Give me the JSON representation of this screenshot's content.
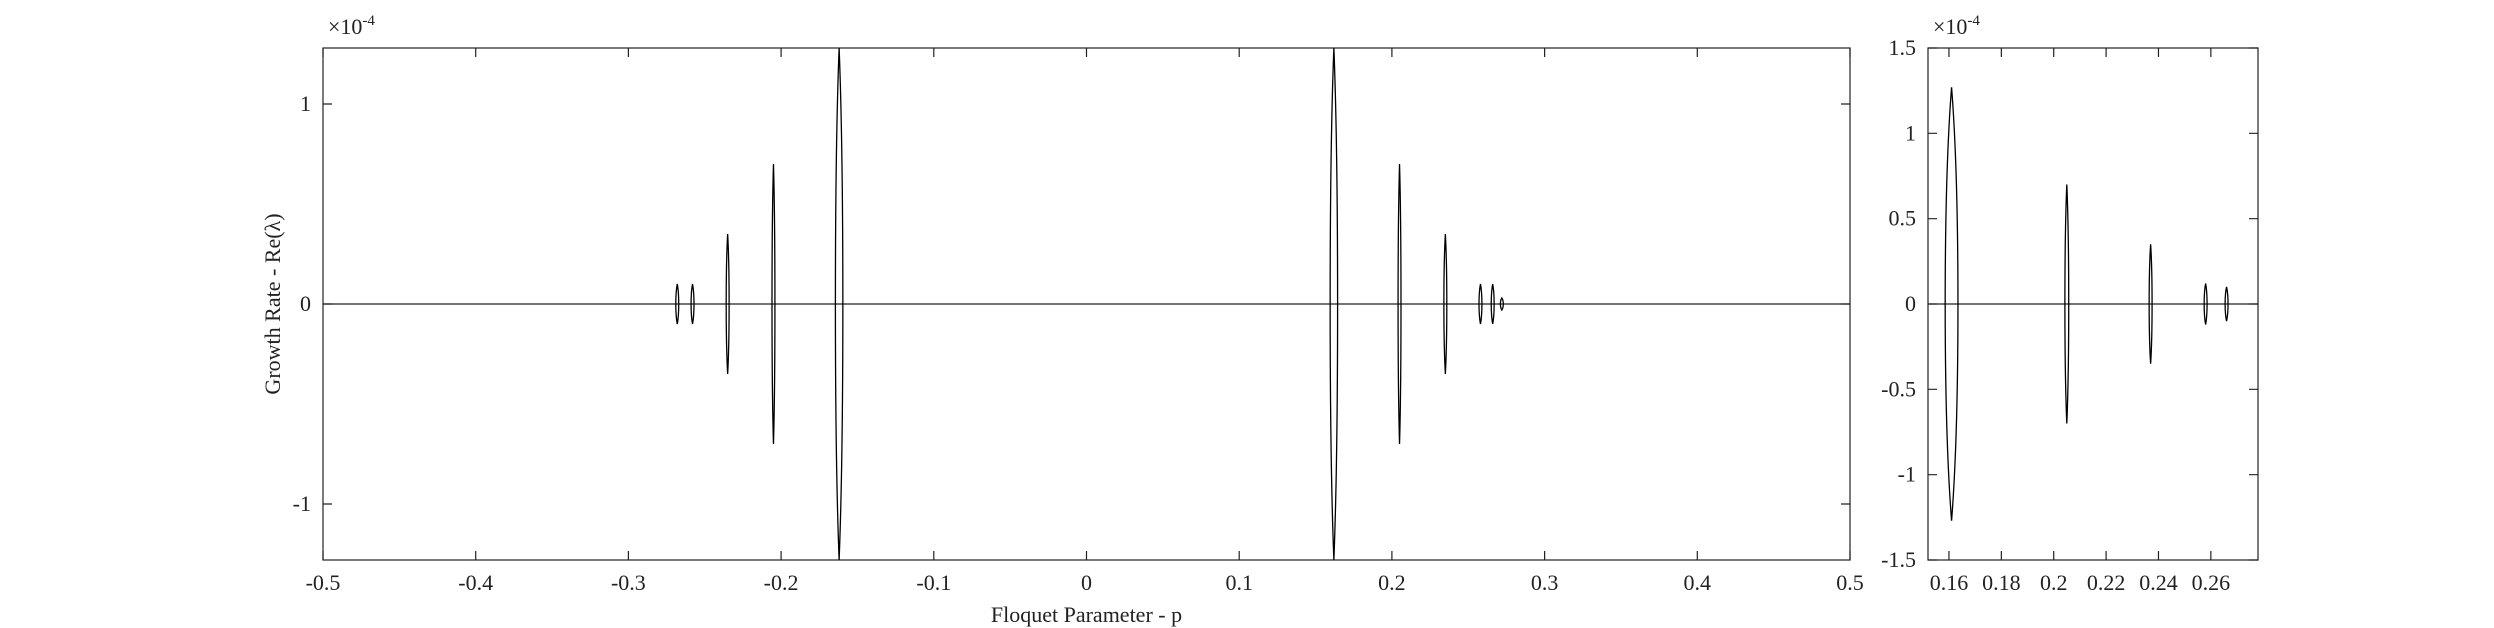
{
  "chart_data": [
    {
      "type": "spikes",
      "xlabel": "Floquet Parameter - p",
      "ylabel": "Growth Rate - Re(λ)",
      "exponent_base": "×10",
      "exponent": "-4",
      "xlim": [
        -0.5,
        0.5
      ],
      "xticks": [
        -0.5,
        -0.4,
        -0.3,
        -0.2,
        -0.1,
        0,
        0.1,
        0.2,
        0.3,
        0.4,
        0.5
      ],
      "ylim": [
        -1.28,
        1.28
      ],
      "yticks": [
        -1,
        0,
        1
      ],
      "color": "#000000",
      "x": [
        -0.268,
        -0.258,
        -0.235,
        -0.205,
        -0.162,
        0.162,
        0.205,
        0.235,
        0.258,
        0.266,
        0.272
      ],
      "values": [
        0.1,
        0.1,
        0.35,
        0.7,
        1.28,
        1.28,
        0.7,
        0.35,
        0.1,
        0.1,
        0.03
      ],
      "widths": [
        0.0005,
        0.0005,
        0.001,
        0.0015,
        0.005,
        0.005,
        0.0015,
        0.001,
        0.0005,
        0.0005,
        0.0005
      ]
    },
    {
      "type": "spikes",
      "exponent_base": "×10",
      "exponent": "-4",
      "xlim": [
        0.152,
        0.278
      ],
      "xticks": [
        0.16,
        0.18,
        0.2,
        0.22,
        0.24,
        0.26
      ],
      "ylim": [
        -1.5,
        1.5
      ],
      "yticks": [
        -1.5,
        -1,
        -0.5,
        0,
        0.5,
        1,
        1.5
      ],
      "color": "#000000",
      "x": [
        0.161,
        0.205,
        0.237,
        0.258,
        0.266
      ],
      "values": [
        1.27,
        0.7,
        0.35,
        0.12,
        0.1
      ],
      "widths": [
        0.005,
        0.0015,
        0.001,
        0.0005,
        0.0005
      ]
    }
  ]
}
